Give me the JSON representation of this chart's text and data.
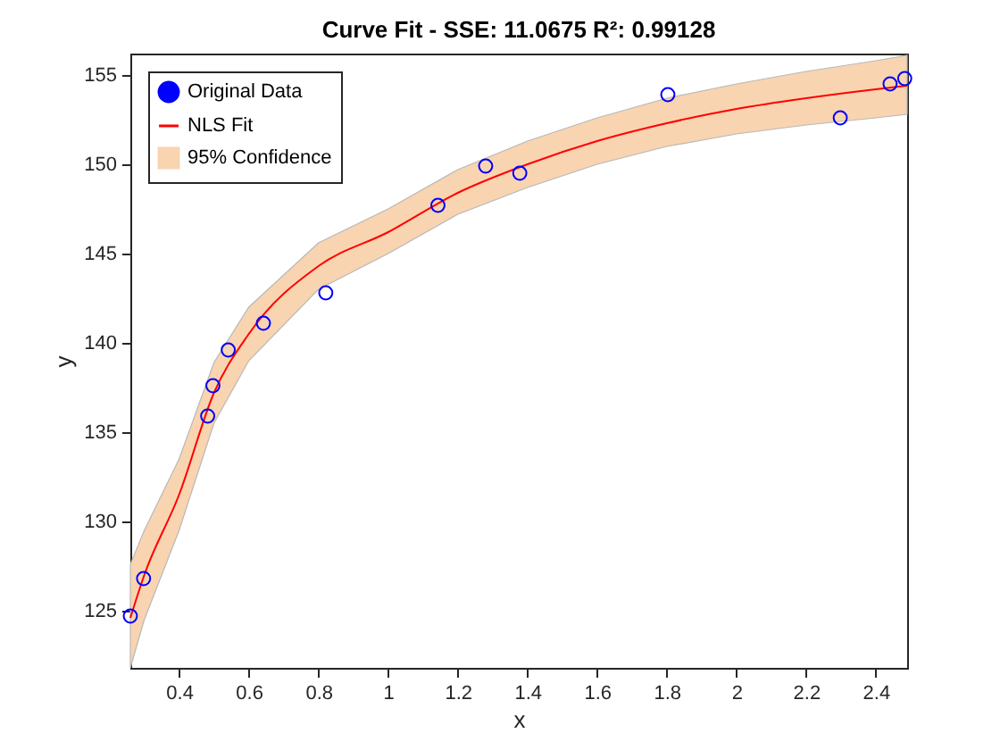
{
  "chart_data": {
    "type": "scatter",
    "title": "Curve Fit - SSE: 11.0675 R²: 0.99128",
    "xlabel": "x",
    "ylabel": "y",
    "xlim": [
      0.26,
      2.49
    ],
    "ylim": [
      121.8,
      156.2
    ],
    "xticks": [
      0.4,
      0.6,
      0.8,
      1,
      1.2,
      1.4,
      1.6,
      1.8,
      2,
      2.2,
      2.4
    ],
    "yticks": [
      125,
      130,
      135,
      140,
      145,
      150,
      155
    ],
    "grid": false,
    "legend": "top left",
    "series": [
      {
        "name": "Original Data",
        "type": "scatter",
        "marker": "circle",
        "color": "#0000ff",
        "x": [
          0.26,
          0.298,
          0.482,
          0.497,
          0.541,
          0.642,
          0.821,
          1.143,
          1.28,
          1.378,
          1.803,
          2.298,
          2.441,
          2.483
        ],
        "values": [
          124.7,
          126.8,
          135.9,
          137.6,
          139.6,
          141.1,
          142.8,
          147.7,
          149.9,
          149.5,
          153.9,
          152.6,
          154.5,
          154.8
        ]
      },
      {
        "name": "NLS Fit",
        "type": "line",
        "color": "#ff0000",
        "line_style": "solid",
        "x": [
          0.26,
          0.3,
          0.4,
          0.5,
          0.6,
          0.8,
          1.0,
          1.2,
          1.4,
          1.6,
          1.8,
          2.0,
          2.2,
          2.4,
          2.49
        ],
        "values": [
          124.6,
          127.0,
          131.5,
          137.2,
          140.5,
          144.3,
          146.2,
          148.4,
          150.0,
          151.3,
          152.3,
          153.1,
          153.7,
          154.2,
          154.4
        ],
        "lower": [
          121.8,
          124.5,
          129.5,
          135.5,
          139.0,
          143.0,
          145.0,
          147.2,
          148.7,
          150.0,
          151.0,
          151.7,
          152.2,
          152.6,
          152.8
        ],
        "upper": [
          127.6,
          129.5,
          133.5,
          138.9,
          142.0,
          145.6,
          147.5,
          149.7,
          151.3,
          152.6,
          153.7,
          154.5,
          155.2,
          155.8,
          156.1
        ]
      },
      {
        "name": "95% Confidence",
        "type": "area",
        "color": "#f9d4b0"
      }
    ]
  }
}
